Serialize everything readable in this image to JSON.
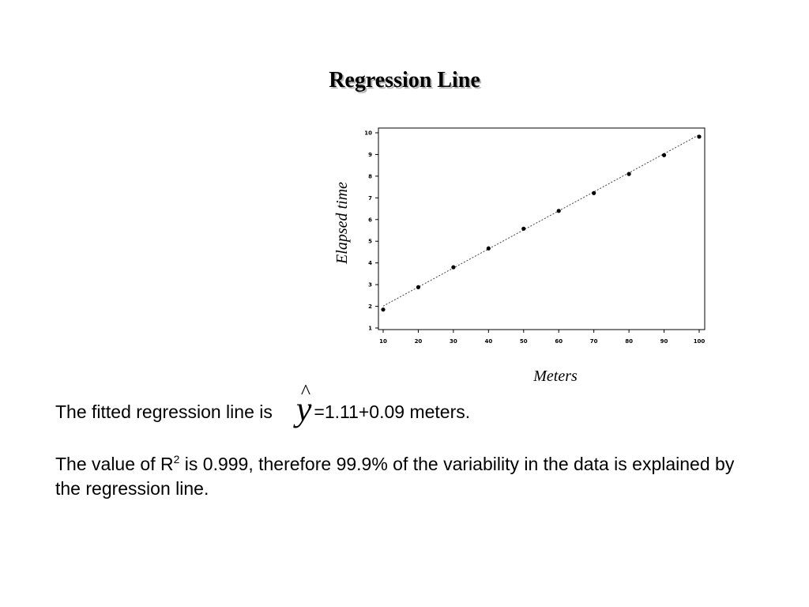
{
  "slide": {
    "title": "Regression Line",
    "fitted_text": "The fitted regression line is",
    "yhat_symbol": "y",
    "fitted_equation": "=1.11+0.09 meters.",
    "r2_prefix": "The value of R",
    "r2_superscript": "2",
    "r2_rest": " is 0.999, therefore 99.9% of the variability in the data is explained by the regression line."
  },
  "chart_data": {
    "type": "scatter",
    "title": "",
    "xlabel": "Meters",
    "ylabel": "Elapsed time",
    "xlim": [
      10,
      100
    ],
    "ylim": [
      1,
      10
    ],
    "x_ticks": [
      10,
      20,
      30,
      40,
      50,
      60,
      70,
      80,
      90,
      100
    ],
    "y_ticks": [
      1,
      2,
      3,
      4,
      5,
      6,
      7,
      8,
      9,
      10
    ],
    "grid": false,
    "points": {
      "x": [
        10,
        20,
        30,
        40,
        50,
        60,
        70,
        80,
        90,
        100
      ],
      "y": [
        1.85,
        2.88,
        3.8,
        4.67,
        5.58,
        6.4,
        7.22,
        8.1,
        8.97,
        9.82
      ]
    },
    "fit_line": {
      "style": "dotted",
      "x": [
        10,
        100
      ],
      "y": [
        2.01,
        9.91
      ]
    }
  }
}
